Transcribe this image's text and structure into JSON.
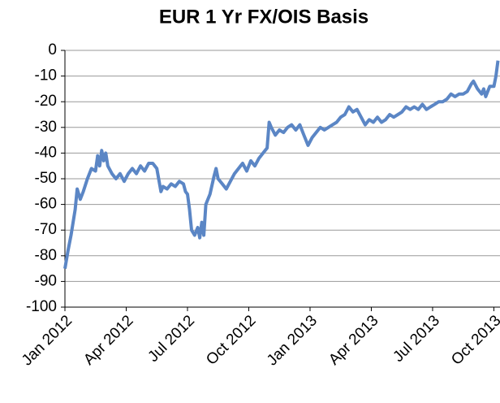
{
  "chart_data": {
    "type": "line",
    "title": "EUR 1 Yr FX/OIS Basis",
    "x": [
      0,
      0.15,
      0.3,
      0.5,
      0.6,
      0.75,
      0.9,
      1.1,
      1.3,
      1.5,
      1.6,
      1.7,
      1.8,
      1.9,
      2.0,
      2.1,
      2.3,
      2.5,
      2.7,
      2.9,
      3.1,
      3.3,
      3.5,
      3.7,
      3.9,
      4.1,
      4.3,
      4.5,
      4.7,
      4.8,
      5.0,
      5.2,
      5.4,
      5.6,
      5.8,
      5.9,
      6.0,
      6.1,
      6.2,
      6.35,
      6.5,
      6.6,
      6.7,
      6.8,
      6.9,
      7.1,
      7.3,
      7.4,
      7.5,
      7.7,
      7.9,
      8.1,
      8.3,
      8.5,
      8.7,
      8.9,
      9.1,
      9.3,
      9.5,
      9.7,
      9.9,
      10.0,
      10.1,
      10.3,
      10.5,
      10.7,
      10.9,
      11.1,
      11.3,
      11.5,
      11.7,
      11.9,
      12.1,
      12.3,
      12.5,
      12.7,
      12.9,
      13.1,
      13.3,
      13.5,
      13.7,
      13.9,
      14.1,
      14.3,
      14.5,
      14.7,
      14.9,
      15.1,
      15.3,
      15.5,
      15.7,
      15.9,
      16.1,
      16.3,
      16.5,
      16.7,
      16.9,
      17.1,
      17.3,
      17.5,
      17.7,
      17.9,
      18.1,
      18.3,
      18.5,
      18.7,
      18.9,
      19.1,
      19.3,
      19.5,
      19.7,
      19.9,
      20.0,
      20.2,
      20.4,
      20.5,
      20.6,
      20.8,
      21.0,
      21.1,
      21.2
    ],
    "values": [
      -85,
      -78,
      -72,
      -62,
      -54,
      -58,
      -55,
      -50,
      -46,
      -47,
      -41,
      -45,
      -39,
      -43,
      -40,
      -45,
      -48,
      -50,
      -48,
      -51,
      -48,
      -46,
      -48,
      -45,
      -47,
      -44,
      -44,
      -46,
      -55,
      -53,
      -54,
      -52,
      -53,
      -51,
      -52,
      -55,
      -56,
      -62,
      -70,
      -72,
      -69,
      -73,
      -67,
      -72,
      -60,
      -56,
      -49,
      -46,
      -50,
      -52,
      -54,
      -51,
      -48,
      -46,
      -44,
      -47,
      -43,
      -45,
      -42,
      -40,
      -38,
      -28,
      -30,
      -33,
      -31,
      -32,
      -30,
      -29,
      -31,
      -29,
      -33,
      -37,
      -34,
      -32,
      -30,
      -31,
      -30,
      -29,
      -28,
      -26,
      -25,
      -22,
      -24,
      -23,
      -26,
      -29,
      -27,
      -28,
      -26,
      -28,
      -27,
      -25,
      -26,
      -25,
      -24,
      -22,
      -23,
      -22,
      -23,
      -21,
      -23,
      -22,
      -21,
      -20,
      -20,
      -19,
      -17,
      -18,
      -17,
      -17,
      -16,
      -13,
      -12,
      -15,
      -17,
      -15,
      -18,
      -14,
      -14,
      -10,
      -4
    ],
    "color": "#5b86c5",
    "xlim": [
      0,
      21.3
    ],
    "xticks": [
      {
        "value": 0,
        "label": "Jan 2012"
      },
      {
        "value": 3,
        "label": "Apr 2012"
      },
      {
        "value": 6,
        "label": "Jul 2012"
      },
      {
        "value": 9,
        "label": "Oct 2012"
      },
      {
        "value": 12,
        "label": "Jan 2013"
      },
      {
        "value": 15,
        "label": "Apr 2013"
      },
      {
        "value": 18,
        "label": "Jul 2013"
      },
      {
        "value": 21,
        "label": "Oct 2013"
      }
    ],
    "ylim": [
      -100,
      0
    ],
    "yticks": [
      -100,
      -90,
      -80,
      -70,
      -60,
      -50,
      -40,
      -30,
      -20,
      -10,
      0
    ],
    "grid": true
  }
}
